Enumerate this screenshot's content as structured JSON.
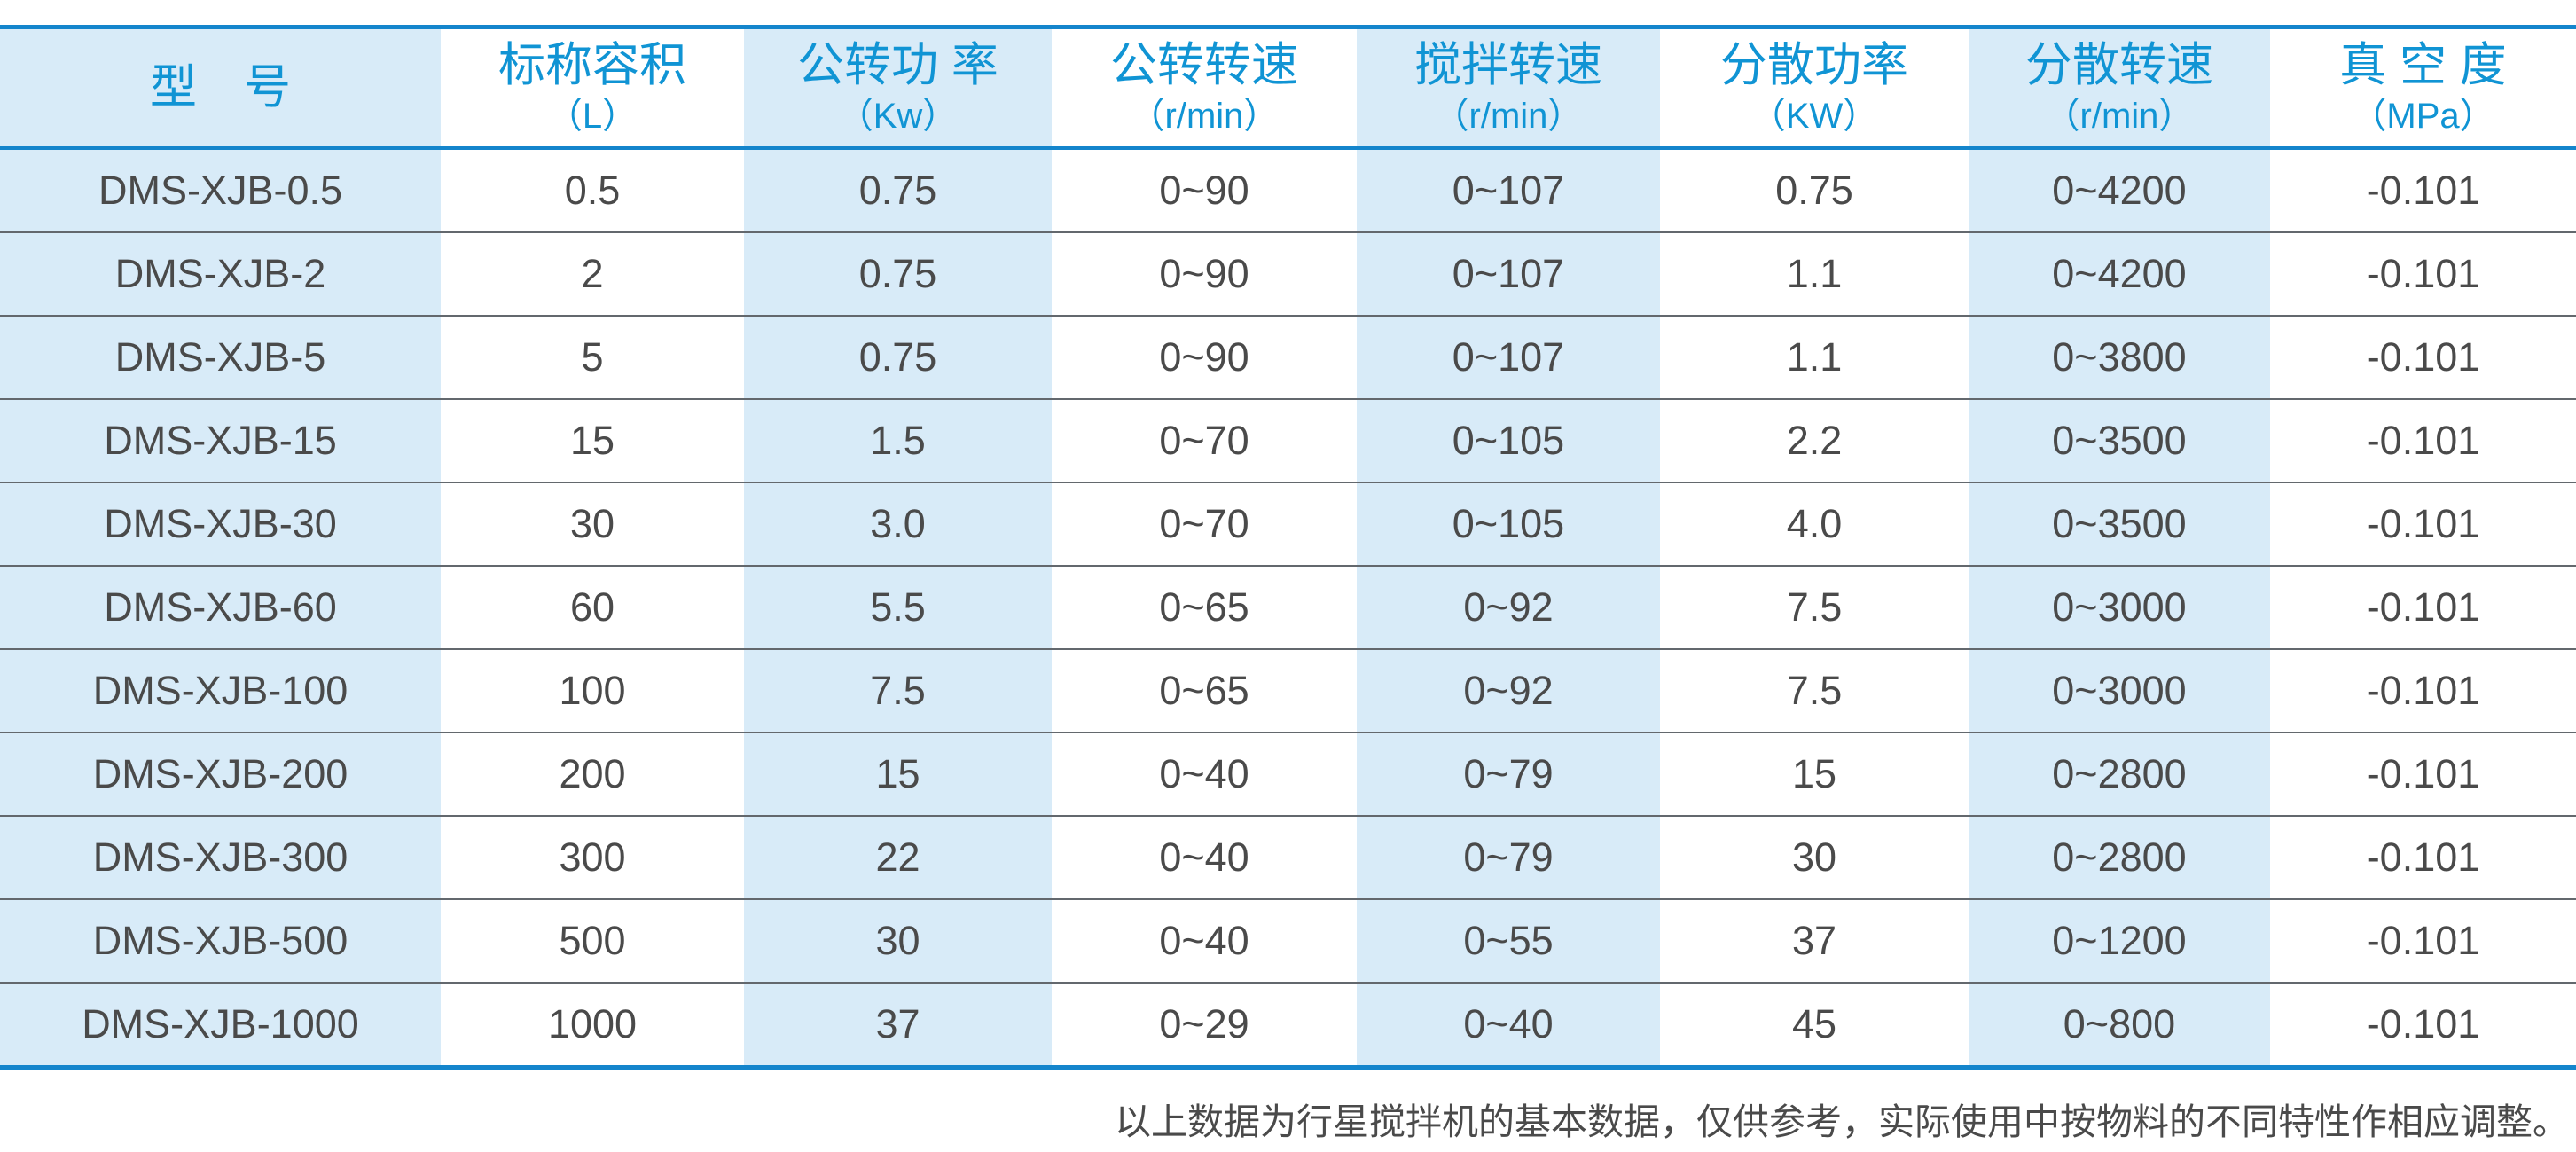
{
  "colors": {
    "border_blue": "#1485cc",
    "header_text_blue": "#1094d4",
    "stripe_light_blue": "#d8ebf8",
    "cell_text_gray": "#4a4a4a",
    "row_separator_gray": "#63686d"
  },
  "table": {
    "columns": [
      {
        "key": "model",
        "label": "型　号",
        "unit": ""
      },
      {
        "key": "nominal-volume",
        "label": "标称容积",
        "unit": "（L）"
      },
      {
        "key": "revolution-power",
        "label": "公转功 率",
        "unit": "（Kw）"
      },
      {
        "key": "revolution-speed",
        "label": "公转转速",
        "unit": "（r/min）"
      },
      {
        "key": "stirring-speed",
        "label": "搅拌转速",
        "unit": "（r/min）"
      },
      {
        "key": "dispersion-power",
        "label": "分散功率",
        "unit": "（KW）"
      },
      {
        "key": "dispersion-speed",
        "label": "分散转速",
        "unit": "（r/min）"
      },
      {
        "key": "vacuum-degree",
        "label": "真 空 度",
        "unit": "（MPa）"
      }
    ],
    "rows": [
      [
        "DMS-XJB-0.5",
        "0.5",
        "0.75",
        "0~90",
        "0~107",
        "0.75",
        "0~4200",
        "-0.101"
      ],
      [
        "DMS-XJB-2",
        "2",
        "0.75",
        "0~90",
        "0~107",
        "1.1",
        "0~4200",
        "-0.101"
      ],
      [
        "DMS-XJB-5",
        "5",
        "0.75",
        "0~90",
        "0~107",
        "1.1",
        "0~3800",
        "-0.101"
      ],
      [
        "DMS-XJB-15",
        "15",
        "1.5",
        "0~70",
        "0~105",
        "2.2",
        "0~3500",
        "-0.101"
      ],
      [
        "DMS-XJB-30",
        "30",
        "3.0",
        "0~70",
        "0~105",
        "4.0",
        "0~3500",
        "-0.101"
      ],
      [
        "DMS-XJB-60",
        "60",
        "5.5",
        "0~65",
        "0~92",
        "7.5",
        "0~3000",
        "-0.101"
      ],
      [
        "DMS-XJB-100",
        "100",
        "7.5",
        "0~65",
        "0~92",
        "7.5",
        "0~3000",
        "-0.101"
      ],
      [
        "DMS-XJB-200",
        "200",
        "15",
        "0~40",
        "0~79",
        "15",
        "0~2800",
        "-0.101"
      ],
      [
        "DMS-XJB-300",
        "300",
        "22",
        "0~40",
        "0~79",
        "30",
        "0~2800",
        "-0.101"
      ],
      [
        "DMS-XJB-500",
        "500",
        "30",
        "0~40",
        "0~55",
        "37",
        "0~1200",
        "-0.101"
      ],
      [
        "DMS-XJB-1000",
        "1000",
        "37",
        "0~29",
        "0~40",
        "45",
        "0~800",
        "-0.101"
      ]
    ]
  },
  "footer": {
    "note": "以上数据为行星搅拌机的基本数据，仅供参考，实际使用中按物料的不同特性作相应调整。"
  }
}
